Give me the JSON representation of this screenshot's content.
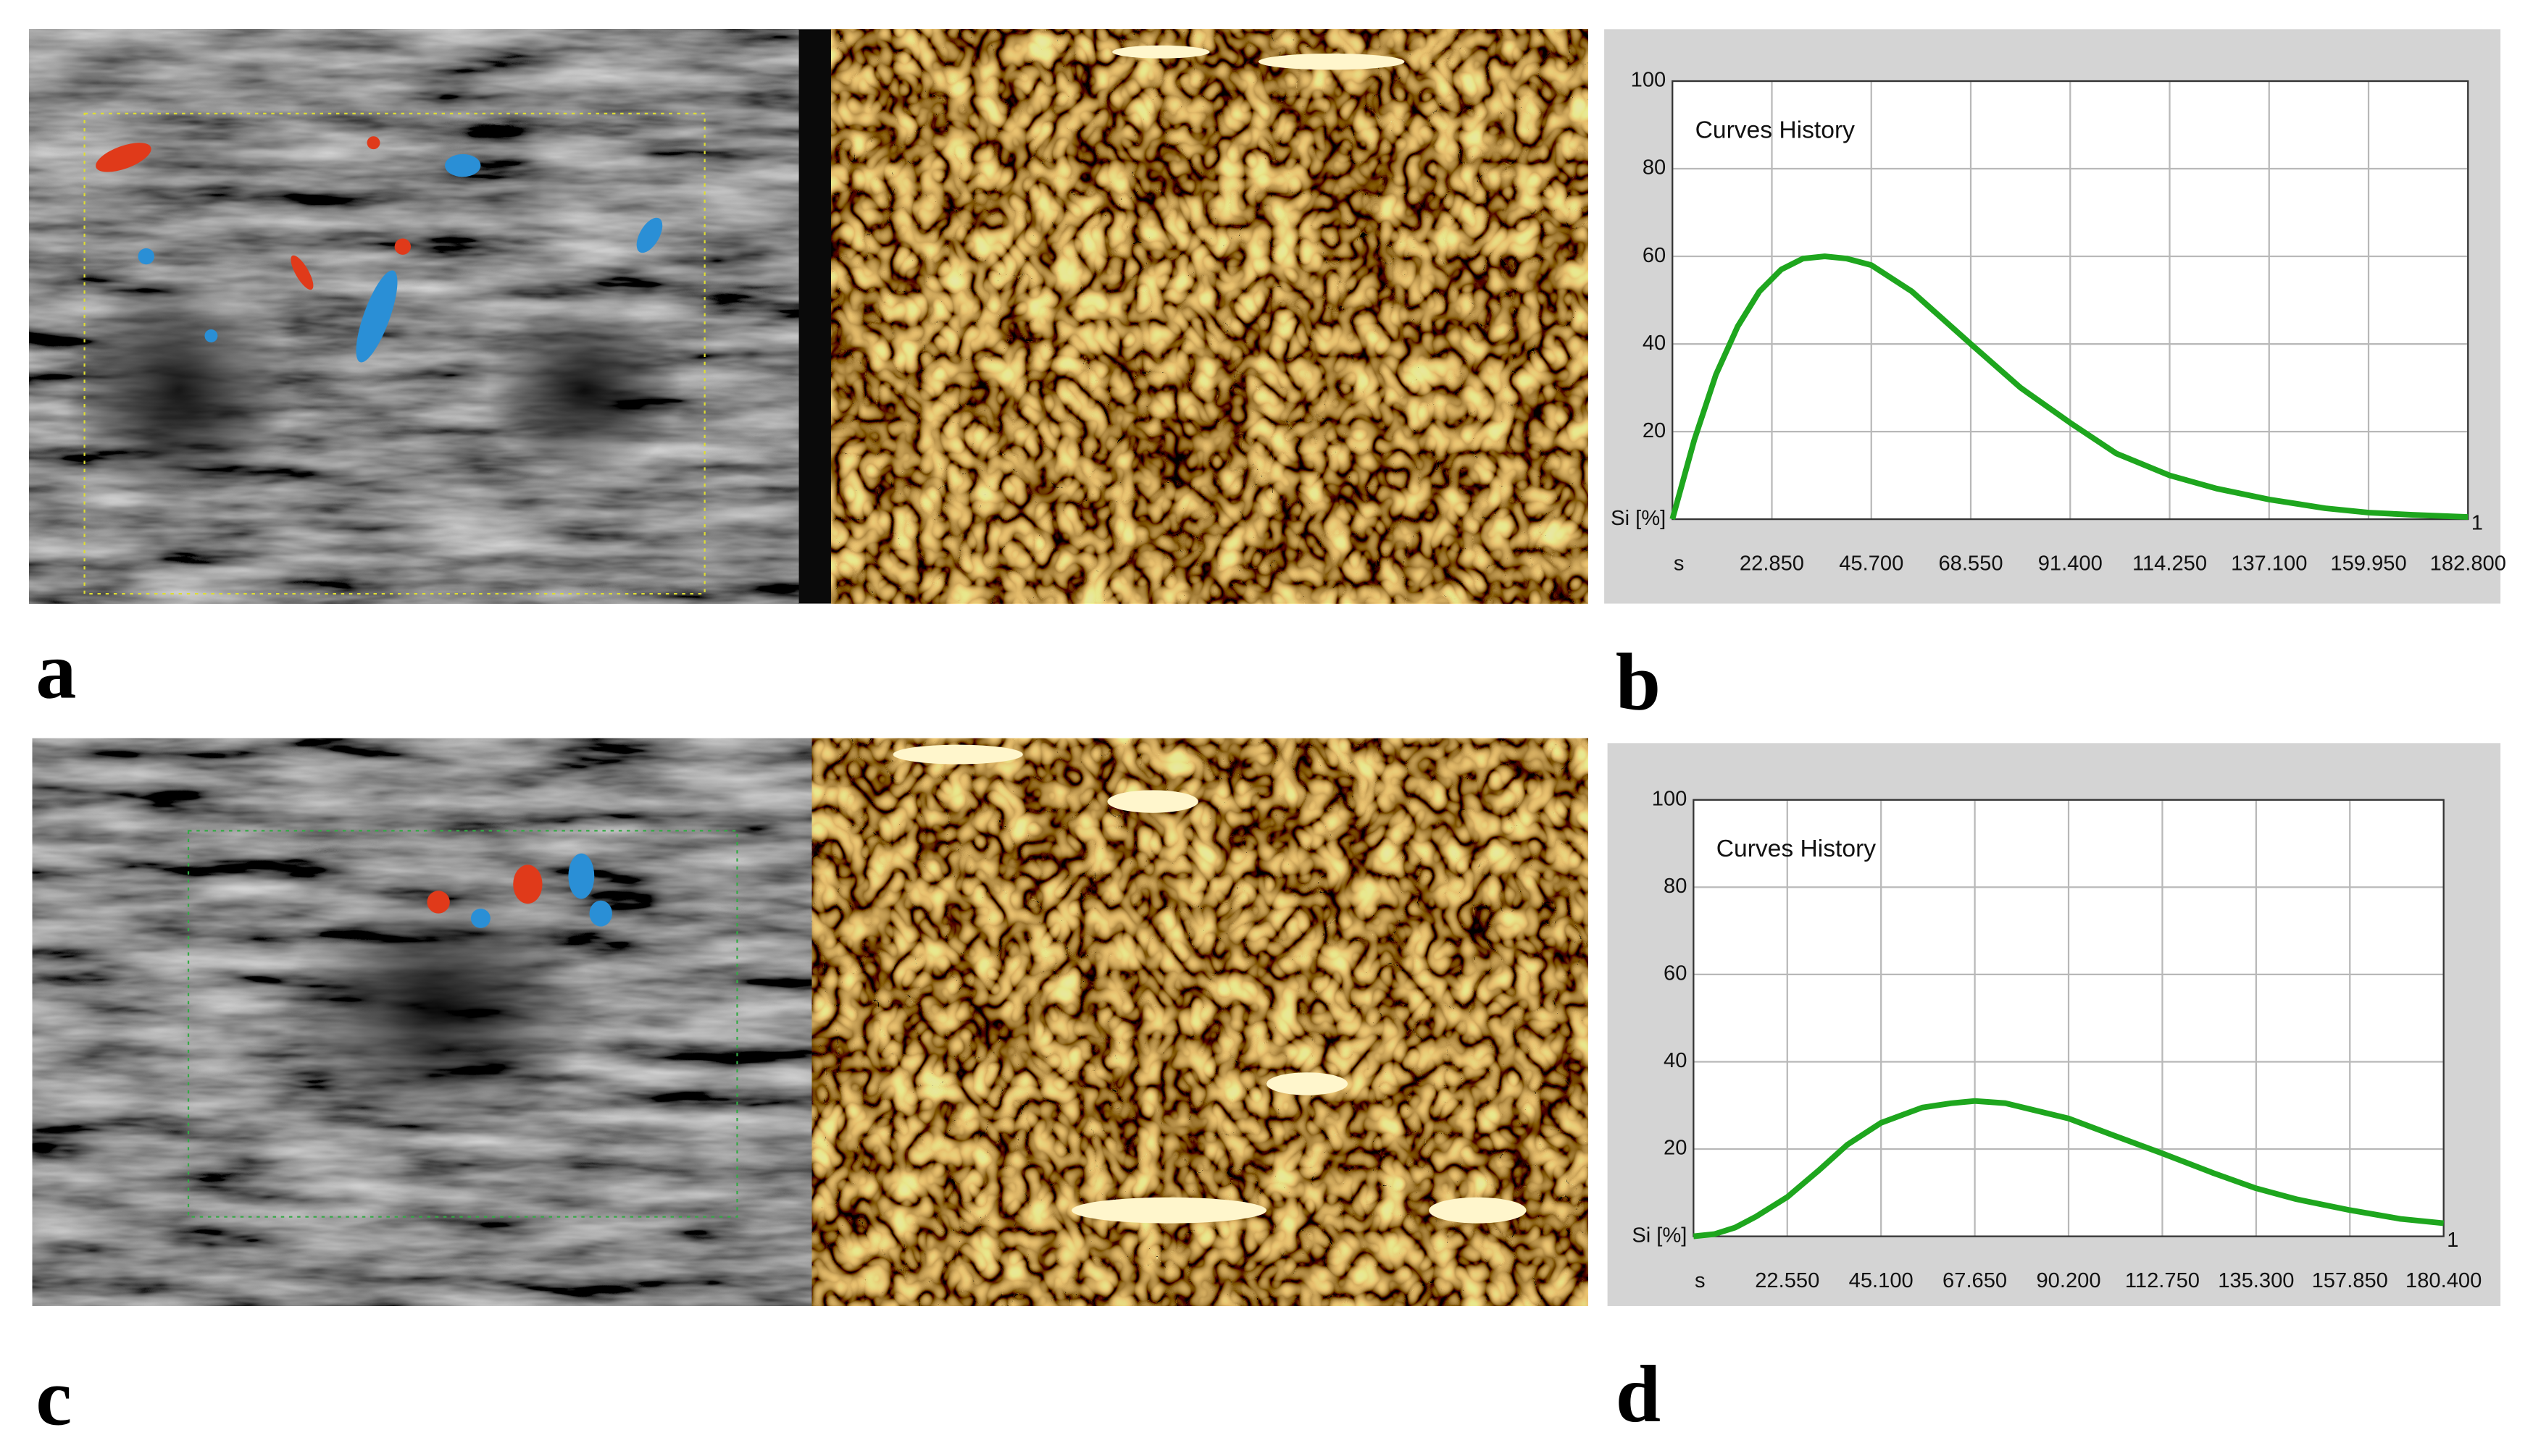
{
  "panel_labels": [
    "a",
    "b",
    "c",
    "d"
  ],
  "chart_data": [
    {
      "type": "line",
      "title": "Curves History",
      "color": "#1ea61e",
      "grid": true,
      "x": [
        0,
        5,
        10,
        15,
        20,
        25,
        30,
        35,
        40,
        45.7,
        55,
        68.55,
        80,
        91.4,
        102,
        114.25,
        125,
        137.1,
        150,
        159.95,
        170,
        182.8
      ],
      "values": [
        0,
        18,
        33,
        44,
        52,
        57,
        59.5,
        60,
        59.5,
        58,
        52,
        40,
        30,
        22,
        15,
        10,
        7,
        4.5,
        2.5,
        1.5,
        1,
        0.5
      ],
      "xlim": [
        0,
        182.8
      ],
      "ylim": [
        0,
        100
      ],
      "xticks": [
        {
          "value": 0,
          "label": "s"
        },
        {
          "value": 22.85,
          "label": "22.850"
        },
        {
          "value": 45.7,
          "label": "45.700"
        },
        {
          "value": 68.55,
          "label": "68.550"
        },
        {
          "value": 91.4,
          "label": "91.400"
        },
        {
          "value": 114.25,
          "label": "114.250"
        },
        {
          "value": 137.1,
          "label": "137.100"
        },
        {
          "value": 159.95,
          "label": "159.950"
        },
        {
          "value": 182.8,
          "label": "182.800"
        }
      ],
      "yticks": [
        {
          "value": 0,
          "label": "Si [%]"
        },
        20,
        40,
        60,
        80,
        100
      ],
      "end_label": "1"
    },
    {
      "type": "line",
      "title": "Curves History",
      "color": "#1ea61e",
      "grid": true,
      "x": [
        0,
        5,
        10,
        15,
        22.55,
        30,
        37,
        45.1,
        55,
        62,
        67.65,
        75,
        90.2,
        100,
        112.75,
        125,
        135.3,
        145,
        157.85,
        170,
        180.4
      ],
      "values": [
        0,
        0.5,
        2,
        4.5,
        9,
        15,
        21,
        26,
        29.5,
        30.5,
        31,
        30.5,
        27,
        23.5,
        19,
        14.5,
        11,
        8.5,
        6,
        4,
        3
      ],
      "xlim": [
        0,
        180.4
      ],
      "ylim": [
        0,
        100
      ],
      "xticks": [
        {
          "value": 0,
          "label": "s"
        },
        {
          "value": 22.55,
          "label": "22.550"
        },
        {
          "value": 45.1,
          "label": "45.100"
        },
        {
          "value": 67.65,
          "label": "67.650"
        },
        {
          "value": 90.2,
          "label": "90.200"
        },
        {
          "value": 112.75,
          "label": "112.750"
        },
        {
          "value": 135.3,
          "label": "135.300"
        },
        {
          "value": 157.85,
          "label": "157.850"
        },
        {
          "value": 180.4,
          "label": "180.400"
        }
      ],
      "yticks": [
        {
          "value": 0,
          "label": "Si [%]"
        },
        20,
        40,
        60,
        80,
        100
      ],
      "end_label": "1"
    }
  ]
}
